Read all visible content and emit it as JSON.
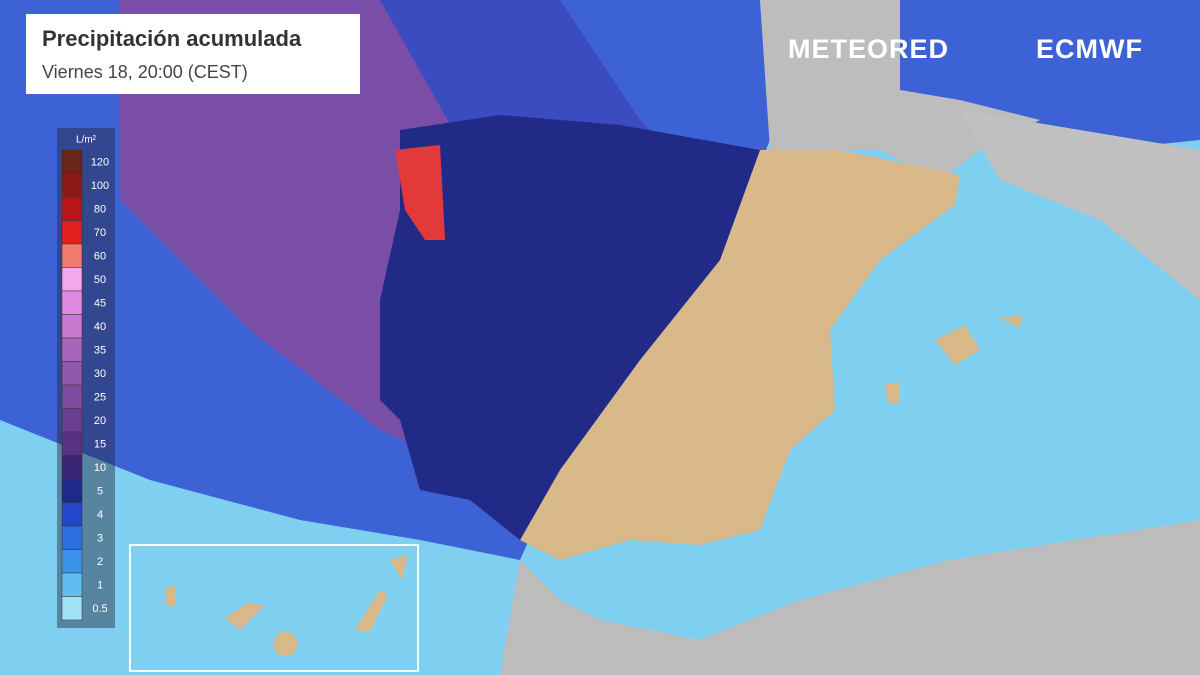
{
  "header": {
    "title": "Precipitación acumulada",
    "subtitle": "Viernes 18, 20:00 (CEST)"
  },
  "brand": {
    "meteored": "METEORED",
    "ecmwf": "ECMWF"
  },
  "legend": {
    "unit": "L/m²",
    "labels": [
      120,
      100,
      80,
      70,
      60,
      50,
      45,
      40,
      35,
      30,
      25,
      20,
      15,
      10,
      5,
      4,
      3,
      2,
      1,
      0.5
    ],
    "colors": [
      "#6b2418",
      "#8e1a16",
      "#b8141a",
      "#e21e1e",
      "#f07a6c",
      "#f2a8ea",
      "#e08ae0",
      "#c77ad0",
      "#a866bb",
      "#9058a8",
      "#7e4c9e",
      "#6a3f93",
      "#573284",
      "#3b2676",
      "#1d2a8c",
      "#2446c8",
      "#2e6ee0",
      "#3a93ea",
      "#5fbdf0",
      "#9fe2f8"
    ]
  }
}
